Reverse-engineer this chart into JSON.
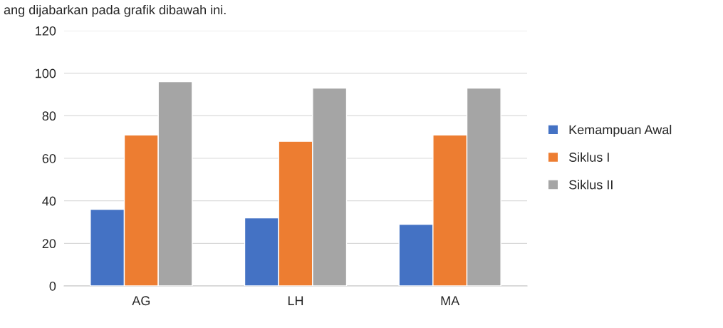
{
  "chart_data": {
    "type": "bar",
    "categories": [
      "AG",
      "LH",
      "MA"
    ],
    "series": [
      {
        "name": "Kemampuan Awal",
        "color": "#4472c4",
        "values": [
          36,
          32,
          29
        ]
      },
      {
        "name": "Siklus I",
        "color": "#ed7d31",
        "values": [
          71,
          68,
          71
        ]
      },
      {
        "name": "Siklus II",
        "color": "#a5a5a5",
        "values": [
          96,
          93,
          93
        ]
      }
    ],
    "ylim": [
      0,
      120
    ],
    "yticks": [
      0,
      20,
      40,
      60,
      80,
      100,
      120
    ],
    "grid": "y",
    "legend": "right",
    "annotations": [
      "ang dijabarkan pada grafik dibawah ini."
    ]
  }
}
